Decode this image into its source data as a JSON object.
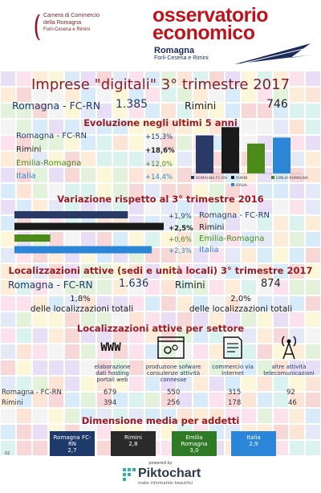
{
  "colors": {
    "navy": "#2a3a66",
    "dark": "#1a1a1a",
    "green": "#4c8a1a",
    "blue": "#2c86d8",
    "red": "#9b1c24"
  },
  "header": {
    "cc_logo": {
      "line1": "Camera di Commercio",
      "line2": "della Romagna",
      "line3": "Forlì-Cesena e Rimini"
    },
    "oe": {
      "word1": "osservatorio",
      "word2": "economico",
      "sub1": "Romagna",
      "sub2": "Forlì-Cesena e Rimini"
    }
  },
  "title": "Imprese \"digitali\" 3° trimestre 2017",
  "totals": {
    "romagna_label": "Romagna - FC-RN",
    "romagna_value": "1.385",
    "rimini_label": "Rimini",
    "rimini_value": "746"
  },
  "evoluzione": {
    "heading": "Evoluzione negli ultimi 5 anni",
    "rows": [
      {
        "label": "Romagna - FC-RN",
        "value": "+15,3%"
      },
      {
        "label": "Rimini",
        "value": "+18,6%"
      },
      {
        "label": "Emilia-Romagna",
        "value": "+12,0%"
      },
      {
        "label": "Italia",
        "value": "+14,4%"
      }
    ],
    "chart_data": {
      "type": "bar",
      "categories": [
        "ROMAGNA FC-RN",
        "RIMINI",
        "EMILIA-ROMAGNA",
        "ITALIA"
      ],
      "values": [
        15.3,
        18.6,
        12.0,
        14.4
      ],
      "colors": [
        "#2a3a66",
        "#1a1a1a",
        "#4c8a1a",
        "#2c86d8"
      ],
      "ylim": [
        0,
        20
      ],
      "legend": "bottom"
    }
  },
  "variazione": {
    "heading": "Variazione rispetto al 3° trimestre 2016",
    "rows": [
      {
        "label": "Romagna - FC-RN",
        "value": "+1,9%"
      },
      {
        "label": "Rimini",
        "value": "+2,5%"
      },
      {
        "label": "Emilia-Romagna",
        "value": "+0,6%"
      },
      {
        "label": "Italia",
        "value": "+2,3%"
      }
    ],
    "chart_data": {
      "type": "bar",
      "orientation": "horizontal",
      "categories": [
        "Romagna - FC-RN",
        "Rimini",
        "Emilia-Romagna",
        "Italia"
      ],
      "values": [
        1.9,
        2.5,
        0.6,
        2.3
      ],
      "colors": [
        "#2a3a66",
        "#1a1a1a",
        "#4c8a1a",
        "#2c86d8"
      ],
      "xlim": [
        0,
        2.5
      ]
    }
  },
  "localizzazioni": {
    "heading": "Localizzazioni attive (sedi e unità locali) 3° trimestre 2017",
    "romagna_label": "Romagna - FC-RN",
    "romagna_value": "1.636",
    "romagna_share": "1,8%",
    "rimini_label": "Rimini",
    "rimini_value": "874",
    "rimini_share": "2,0%",
    "share_caption": "delle localizzazioni totali"
  },
  "settori": {
    "heading": "Localizzazioni attive per settore",
    "items": [
      {
        "icon": "www-icon",
        "glyph": "WWW",
        "label": "elaborazione dati hosting portali web",
        "romagna": "679",
        "rimini": "394"
      },
      {
        "icon": "gears-window-icon",
        "glyph": "",
        "label": "produzione sofware consulenze attività connesse",
        "romagna": "550",
        "rimini": "256"
      },
      {
        "icon": "shopping-cart-icon",
        "glyph": "",
        "label": "commercio via internet",
        "romagna": "315",
        "rimini": "178"
      },
      {
        "icon": "antenna-icon",
        "glyph": "",
        "label": "altre attività telecomunicazioni",
        "romagna": "92",
        "rimini": "46"
      }
    ],
    "row_label_romagna": "Romagna - FC-RN",
    "row_label_rimini": "Rimini"
  },
  "dimensione": {
    "heading": "Dimensione media per addetti",
    "boxes": [
      {
        "label": "Romagna FC-RN",
        "value": "2,7",
        "color": "#1e3a6b"
      },
      {
        "label": "Rimini",
        "value": "2,8",
        "color": "#2a2a2a"
      },
      {
        "label": "Emilia Romagna",
        "value": "3,0",
        "color": "#2e7a26"
      },
      {
        "label": "Italia",
        "value": "2,9",
        "color": "#2c86d8"
      }
    ]
  },
  "page_number": "02",
  "footer": {
    "powered_by": "powered by",
    "brand": "Piktochart",
    "tagline": "make information beautiful"
  }
}
